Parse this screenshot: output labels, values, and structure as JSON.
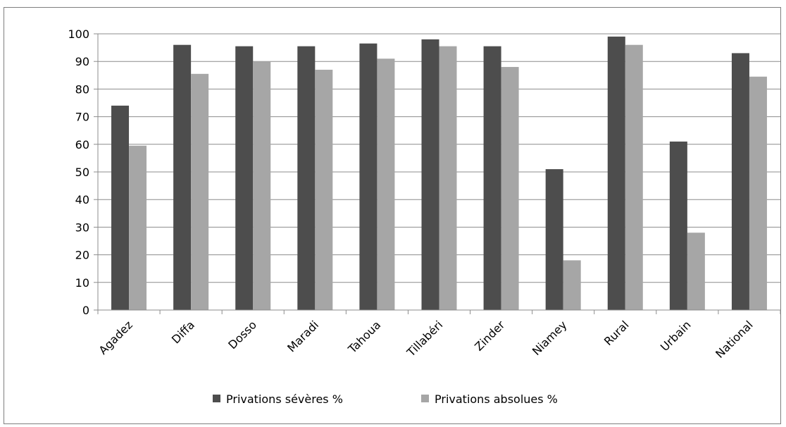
{
  "chart_data": {
    "type": "bar",
    "title": "",
    "xlabel": "",
    "ylabel": "",
    "categories": [
      "Agadez",
      "Diffa",
      "Dosso",
      "Maradi",
      "Tahoua",
      "Tillabéri",
      "Zinder",
      "Niamey",
      "Rural",
      "Urbain",
      "National"
    ],
    "series": [
      {
        "name": "Privations sévères %",
        "color": "#4d4d4d",
        "values": [
          74,
          96,
          95.5,
          95.5,
          96.5,
          98,
          95.5,
          51,
          99,
          61,
          93
        ]
      },
      {
        "name": "Privations absolues %",
        "color": "#a6a6a6",
        "values": [
          59.5,
          85.5,
          90,
          87,
          91,
          95.5,
          88,
          18,
          96,
          28,
          84.5
        ]
      }
    ],
    "ylim": [
      0,
      100
    ],
    "yticks": [
      0,
      10,
      20,
      30,
      40,
      50,
      60,
      70,
      80,
      90,
      100
    ],
    "grid": true,
    "legend_position": "bottom"
  }
}
